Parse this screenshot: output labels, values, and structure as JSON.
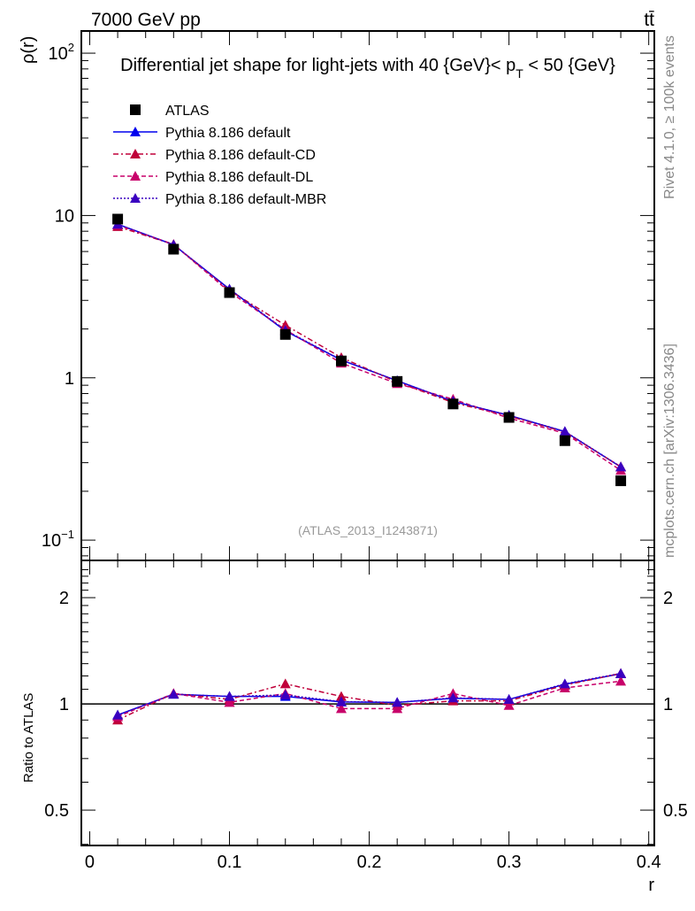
{
  "header": {
    "left": "7000 GeV pp",
    "right": "tt̄"
  },
  "side": {
    "rivet": "Rivet 4.1.0, ≥ 100k events",
    "mcplots": "mcplots.cern.ch [arXiv:1306.3436]"
  },
  "chart_data": {
    "type": "line",
    "title": "Differential jet shape for light-jets with 40 {GeV}< p_T < 50 {GeV}",
    "title_parts": {
      "main": "Differential jet shape for light-jets with 40 {GeV}< p",
      "sub": "T",
      "tail": " < 50 {GeV}"
    },
    "watermark": "(ATLAS_2013_I1243871)",
    "xlabel": "r",
    "ylabel": "ρ(r)",
    "ratio_ylabel": "Ratio to ATLAS",
    "xlim": [
      -0.006,
      0.404
    ],
    "ylim": [
      0.075,
      137
    ],
    "ratio_ylim": [
      0.397,
      2.55
    ],
    "yscale": "log",
    "ratio_yscale": "log",
    "xticks": [
      "0",
      "0.1",
      "0.2",
      "0.3",
      "0.4"
    ],
    "yticks": [
      {
        "v": 100,
        "base": "10",
        "exp": "2"
      },
      {
        "v": 10,
        "base": "10",
        "exp": ""
      },
      {
        "v": 1,
        "base": "1",
        "exp": ""
      },
      {
        "v": 0.1,
        "base": "10",
        "exp": "−1"
      }
    ],
    "ratio_yticks": [
      {
        "v": 2,
        "label": "2"
      },
      {
        "v": 1,
        "label": "1"
      },
      {
        "v": 0.5,
        "label": "0.5"
      }
    ],
    "legend_position": "top-left",
    "x": [
      0.02,
      0.06,
      0.1,
      0.14,
      0.18,
      0.22,
      0.26,
      0.3,
      0.34,
      0.38
    ],
    "data": {
      "name": "ATLAS",
      "values": [
        9.5,
        6.2,
        3.35,
        1.85,
        1.27,
        0.95,
        0.69,
        0.57,
        0.41,
        0.232
      ]
    },
    "series": [
      {
        "name": "Pythia 8.186 default",
        "color": "#0000ee",
        "dash": "",
        "ratio": [
          0.93,
          1.065,
          1.05,
          1.05,
          1.013,
          1.01,
          1.037,
          1.03,
          1.137,
          1.217
        ]
      },
      {
        "name": "Pythia 8.186 default-CD",
        "color": "#c0003a",
        "dash": "6,3,2,3",
        "ratio": [
          0.9,
          1.07,
          1.03,
          1.14,
          1.05,
          0.99,
          1.02,
          1.02,
          1.13,
          1.22
        ]
      },
      {
        "name": "Pythia 8.186 default-DL",
        "color": "#c8006a",
        "dash": "5,3",
        "ratio": [
          0.92,
          1.07,
          1.01,
          1.07,
          0.97,
          0.97,
          1.07,
          0.99,
          1.11,
          1.16
        ]
      },
      {
        "name": "Pythia 8.186 default-MBR",
        "color": "#3a00c0",
        "dash": "2,2",
        "ratio": [
          0.93,
          1.065,
          1.05,
          1.06,
          1.015,
          1.01,
          1.04,
          1.03,
          1.14,
          1.22
        ]
      }
    ]
  }
}
